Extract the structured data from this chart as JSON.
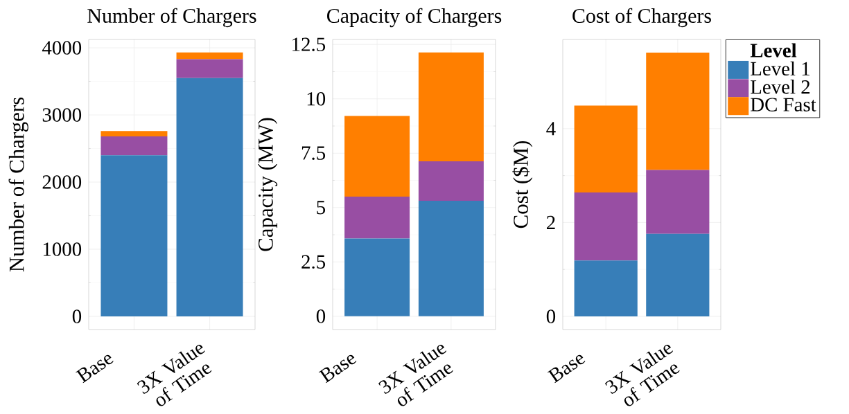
{
  "chart_data": [
    {
      "type": "bar",
      "stacked": true,
      "title": "Number of Chargers",
      "ylabel": "Number of Chargers",
      "categories": [
        "Base",
        "3X Value of Time"
      ],
      "grid": true,
      "ylim": [
        -196,
        4124
      ],
      "yticks": [
        0,
        1000,
        2000,
        3000,
        4000
      ],
      "series": [
        {
          "color": "#377eb8",
          "values": [
            2400,
            3550
          ]
        },
        {
          "color": "#984ea3",
          "values": [
            280,
            280
          ]
        },
        {
          "color": "#ff7f00",
          "values": [
            80,
            100
          ]
        }
      ]
    },
    {
      "type": "bar",
      "stacked": true,
      "title": "Capacity of Chargers",
      "ylabel": "Capacity (MW)",
      "categories": [
        "Base",
        "3X Value of Time"
      ],
      "grid": true,
      "ylim": [
        -0.61,
        12.73
      ],
      "yticks": [
        0,
        2.5,
        5,
        7.5,
        10,
        12.5
      ],
      "series": [
        {
          "color": "#377eb8",
          "values": [
            3.58,
            5.31
          ]
        },
        {
          "color": "#984ea3",
          "values": [
            1.92,
            1.82
          ]
        },
        {
          "color": "#ff7f00",
          "values": [
            3.71,
            5.0
          ]
        }
      ]
    },
    {
      "type": "bar",
      "stacked": true,
      "title": "Cost of Chargers",
      "ylabel": "Cost ($M)",
      "categories": [
        "Base",
        "3X Value of Time"
      ],
      "grid": true,
      "ylim": [
        -0.28,
        5.9
      ],
      "yticks": [
        0,
        2,
        4
      ],
      "legend": "right",
      "legend_title": "Level",
      "series": [
        {
          "name": "Level 1",
          "color": "#377eb8",
          "values": [
            1.19,
            1.76
          ]
        },
        {
          "name": "Level 2",
          "color": "#984ea3",
          "values": [
            1.45,
            1.36
          ]
        },
        {
          "name": "DC Fast",
          "color": "#ff7f00",
          "values": [
            1.85,
            2.5
          ]
        }
      ]
    }
  ]
}
